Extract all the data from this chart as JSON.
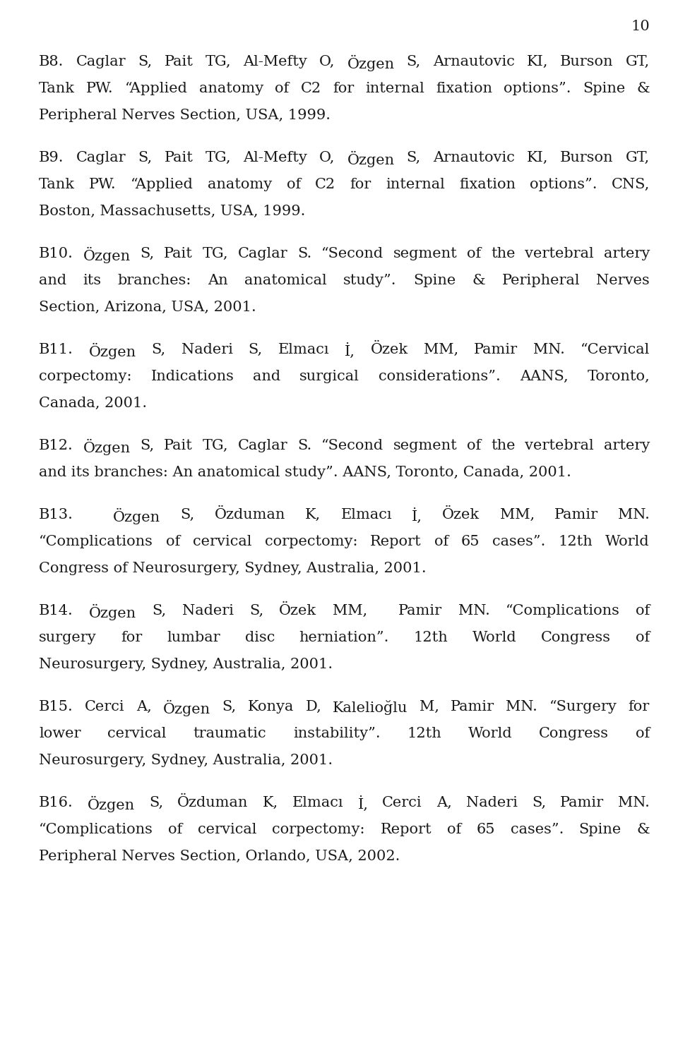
{
  "page_number": "10",
  "background_color": "#ffffff",
  "text_color": "#1a1a1a",
  "font_size": 15.0,
  "page_num_font_size": 15.0,
  "paragraphs": [
    {
      "lines": [
        {
          "text": "B8. Caglar S, Pait TG, Al-Mefty O, Özgen S, Arnautovic KI, Burson GT,",
          "last": false
        },
        {
          "text": "Tank PW. “Applied anatomy of C2 for internal fixation options”. Spine &",
          "last": false
        },
        {
          "text": "Peripheral Nerves Section, USA, 1999.",
          "last": true
        }
      ]
    },
    {
      "lines": [
        {
          "text": "B9. Caglar S, Pait TG, Al-Mefty O, Özgen S, Arnautovic KI, Burson GT,",
          "last": false
        },
        {
          "text": "Tank PW. “Applied anatomy of C2 for internal fixation options”. CNS,",
          "last": false
        },
        {
          "text": "Boston, Massachusetts, USA, 1999.",
          "last": true
        }
      ]
    },
    {
      "lines": [
        {
          "text": "B10. Özgen S, Pait TG, Caglar S. “Second segment of the vertebral artery",
          "last": false
        },
        {
          "text": "and its branches: An anatomical study”. Spine & Peripheral Nerves",
          "last": false
        },
        {
          "text": "Section, Arizona, USA, 2001.",
          "last": true
        }
      ]
    },
    {
      "lines": [
        {
          "text": "B11. Özgen S, Naderi S, Elmacı İ, Özek MM, Pamir MN. “Cervical",
          "last": false
        },
        {
          "text": "corpectomy: Indications and surgical considerations”. AANS, Toronto,",
          "last": false
        },
        {
          "text": "Canada, 2001.",
          "last": true
        }
      ]
    },
    {
      "lines": [
        {
          "text": "B12. Özgen S, Pait TG, Caglar S. “Second segment of the vertebral artery",
          "last": false
        },
        {
          "text": "and its branches: An anatomical study”. AANS, Toronto, Canada, 2001.",
          "last": true
        }
      ]
    },
    {
      "lines": [
        {
          "text": "B13.  Özgen S, Özduman K, Elmacı İ, Özek MM, Pamir MN.",
          "last": false
        },
        {
          "text": "“Complications of cervical corpectomy: Report of 65 cases”. 12th World",
          "last": false
        },
        {
          "text": "Congress of Neurosurgery, Sydney, Australia, 2001.",
          "last": true
        }
      ]
    },
    {
      "lines": [
        {
          "text": "B14. Özgen S, Naderi S, Özek MM,  Pamir MN. “Complications of",
          "last": false
        },
        {
          "text": "surgery for lumbar disc herniation”. 12th World Congress of",
          "last": false
        },
        {
          "text": "Neurosurgery, Sydney, Australia, 2001.",
          "last": true
        }
      ]
    },
    {
      "lines": [
        {
          "text": "B15. Cerci A, Özgen S, Konya D, Kalelioğlu M, Pamir MN. “Surgery for",
          "last": false
        },
        {
          "text": "lower cervical traumatic instability”. 12th World Congress of",
          "last": false
        },
        {
          "text": "Neurosurgery, Sydney, Australia, 2001.",
          "last": true
        }
      ]
    },
    {
      "lines": [
        {
          "text": "B16. Özgen S, Özduman K, Elmacı İ, Cerci A, Naderi S, Pamir MN.",
          "last": false
        },
        {
          "text": "“Complications of cervical corpectomy: Report of 65 cases”. Spine &",
          "last": false
        },
        {
          "text": "Peripheral Nerves Section, Orlando, USA, 2002.",
          "last": true
        }
      ]
    }
  ]
}
